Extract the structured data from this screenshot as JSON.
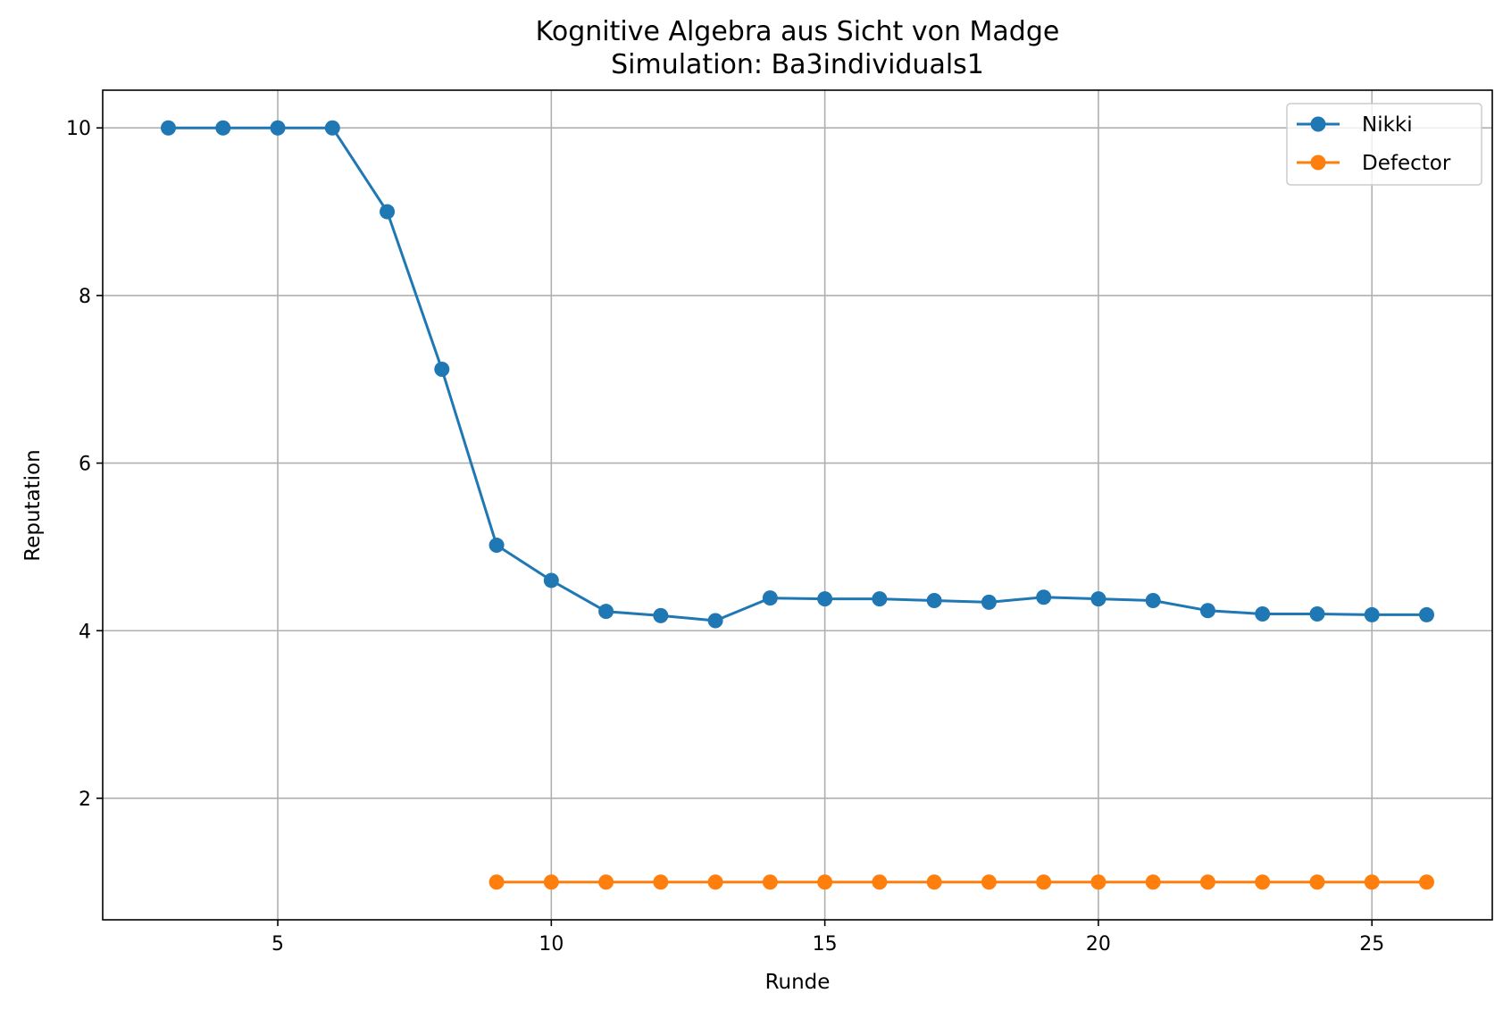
{
  "chart_data": {
    "type": "line",
    "title": "Kognitive Algebra aus Sicht von Madge",
    "subtitle": "Simulation: Ba3individuals1",
    "xlabel": "Runde",
    "ylabel": "Reputation",
    "xlim": [
      1.8,
      27.2
    ],
    "ylim": [
      0.55,
      10.45
    ],
    "xticks": [
      5,
      10,
      15,
      20,
      25
    ],
    "yticks": [
      2,
      4,
      6,
      8,
      10
    ],
    "grid": true,
    "legend_position": "top-right",
    "series": [
      {
        "name": "Nikki",
        "color": "#1f77b4",
        "x": [
          3,
          4,
          5,
          6,
          7,
          8,
          9,
          10,
          11,
          12,
          13,
          14,
          15,
          16,
          17,
          18,
          19,
          20,
          21,
          22,
          23,
          24,
          25,
          26
        ],
        "y": [
          10,
          10,
          10,
          10,
          9.0,
          7.12,
          5.02,
          4.6,
          4.23,
          4.18,
          4.12,
          4.39,
          4.38,
          4.38,
          4.36,
          4.34,
          4.4,
          4.38,
          4.36,
          4.24,
          4.2,
          4.2,
          4.19,
          4.19
        ]
      },
      {
        "name": "Defector",
        "color": "#ff7f0e",
        "x": [
          9,
          10,
          11,
          12,
          13,
          14,
          15,
          16,
          17,
          18,
          19,
          20,
          21,
          22,
          23,
          24,
          25,
          26
        ],
        "y": [
          1,
          1,
          1,
          1,
          1,
          1,
          1,
          1,
          1,
          1,
          1,
          1,
          1,
          1,
          1,
          1,
          1,
          1
        ]
      }
    ]
  }
}
